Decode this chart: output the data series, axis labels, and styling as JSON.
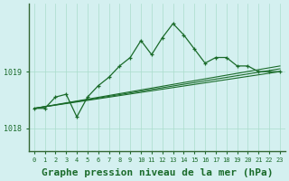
{
  "background_color": "#d4f0f0",
  "plot_bg_color": "#d4f0f0",
  "grid_color": "#aaddcc",
  "line_color": "#1a6b2a",
  "marker_color": "#1a6b2a",
  "xlabel": "Graphe pression niveau de la mer (hPa)",
  "xlabel_fontsize": 8,
  "yticks": [
    1018,
    1019
  ],
  "ylim": [
    1017.6,
    1020.2
  ],
  "xlim": [
    -0.5,
    23.5
  ],
  "xticks": [
    0,
    1,
    2,
    3,
    4,
    5,
    6,
    7,
    8,
    9,
    10,
    11,
    12,
    13,
    14,
    15,
    16,
    17,
    18,
    19,
    20,
    21,
    22,
    23
  ],
  "line1_x": [
    0,
    1,
    2,
    3,
    4,
    5,
    6,
    7,
    8,
    9,
    10,
    11,
    12,
    13,
    14,
    15,
    16,
    17,
    18,
    19,
    20,
    21,
    22,
    23
  ],
  "line1_y": [
    1018.35,
    1018.35,
    1018.55,
    1018.6,
    1018.2,
    1018.55,
    1018.75,
    1018.9,
    1019.1,
    1019.25,
    1019.55,
    1019.3,
    1019.6,
    1019.85,
    1019.65,
    1019.4,
    1019.15,
    1019.25,
    1019.25,
    1019.1,
    1019.1,
    1019.0,
    1019.0,
    1019.0
  ],
  "line2_x": [
    0,
    23
  ],
  "line2_y": [
    1018.35,
    1019.0
  ],
  "line3_x": [
    0,
    23
  ],
  "line3_y": [
    1018.35,
    1019.05
  ],
  "line4_x": [
    0,
    23
  ],
  "line4_y": [
    1018.35,
    1019.1
  ]
}
